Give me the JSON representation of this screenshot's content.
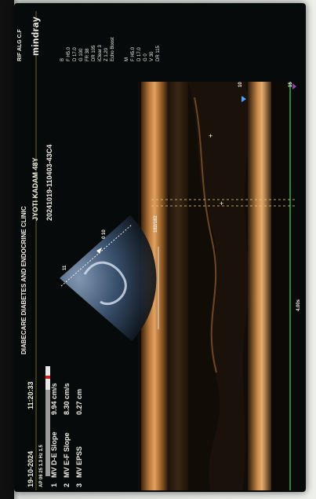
{
  "header": {
    "clinic": "DIABECARE DIABETES AND ENDOCRINE CLINIC",
    "date": "19-10-2024",
    "time": "11:20:33",
    "patient": "JYOTI KADAM 48Y",
    "exam_id": "20241019-110403-43C4",
    "top_right": "RIF ALG C.F",
    "brand": "mindray"
  },
  "probe_label": "AP 06 25 1.3 Hz 1.5",
  "params_bmode": [
    "B",
    "F H5.0",
    "D 17.0",
    "G 100",
    "FR 38",
    "DR 105",
    "iClear 3",
    "Z 1.20",
    "Echo Boost"
  ],
  "params_mmode": [
    "M",
    "F H5.0",
    "D 17.0",
    "G 0",
    "V 30",
    "DR 115"
  ],
  "measurements": [
    {
      "index": "1",
      "name": "MV D-E Slope",
      "value": "9.94 cm/s"
    },
    {
      "index": "2",
      "name": "MV E-F Slope",
      "value": "8.30 cm/s"
    },
    {
      "index": "3",
      "name": "MV EPSS",
      "value": "0.27 cm"
    }
  ],
  "labels": {
    "depth_top": "10",
    "depth_bottom": "15",
    "scale_mmode": "0 10",
    "speed": "4.00s",
    "zoom_mark": "11",
    "ratio": "182/182"
  }
}
